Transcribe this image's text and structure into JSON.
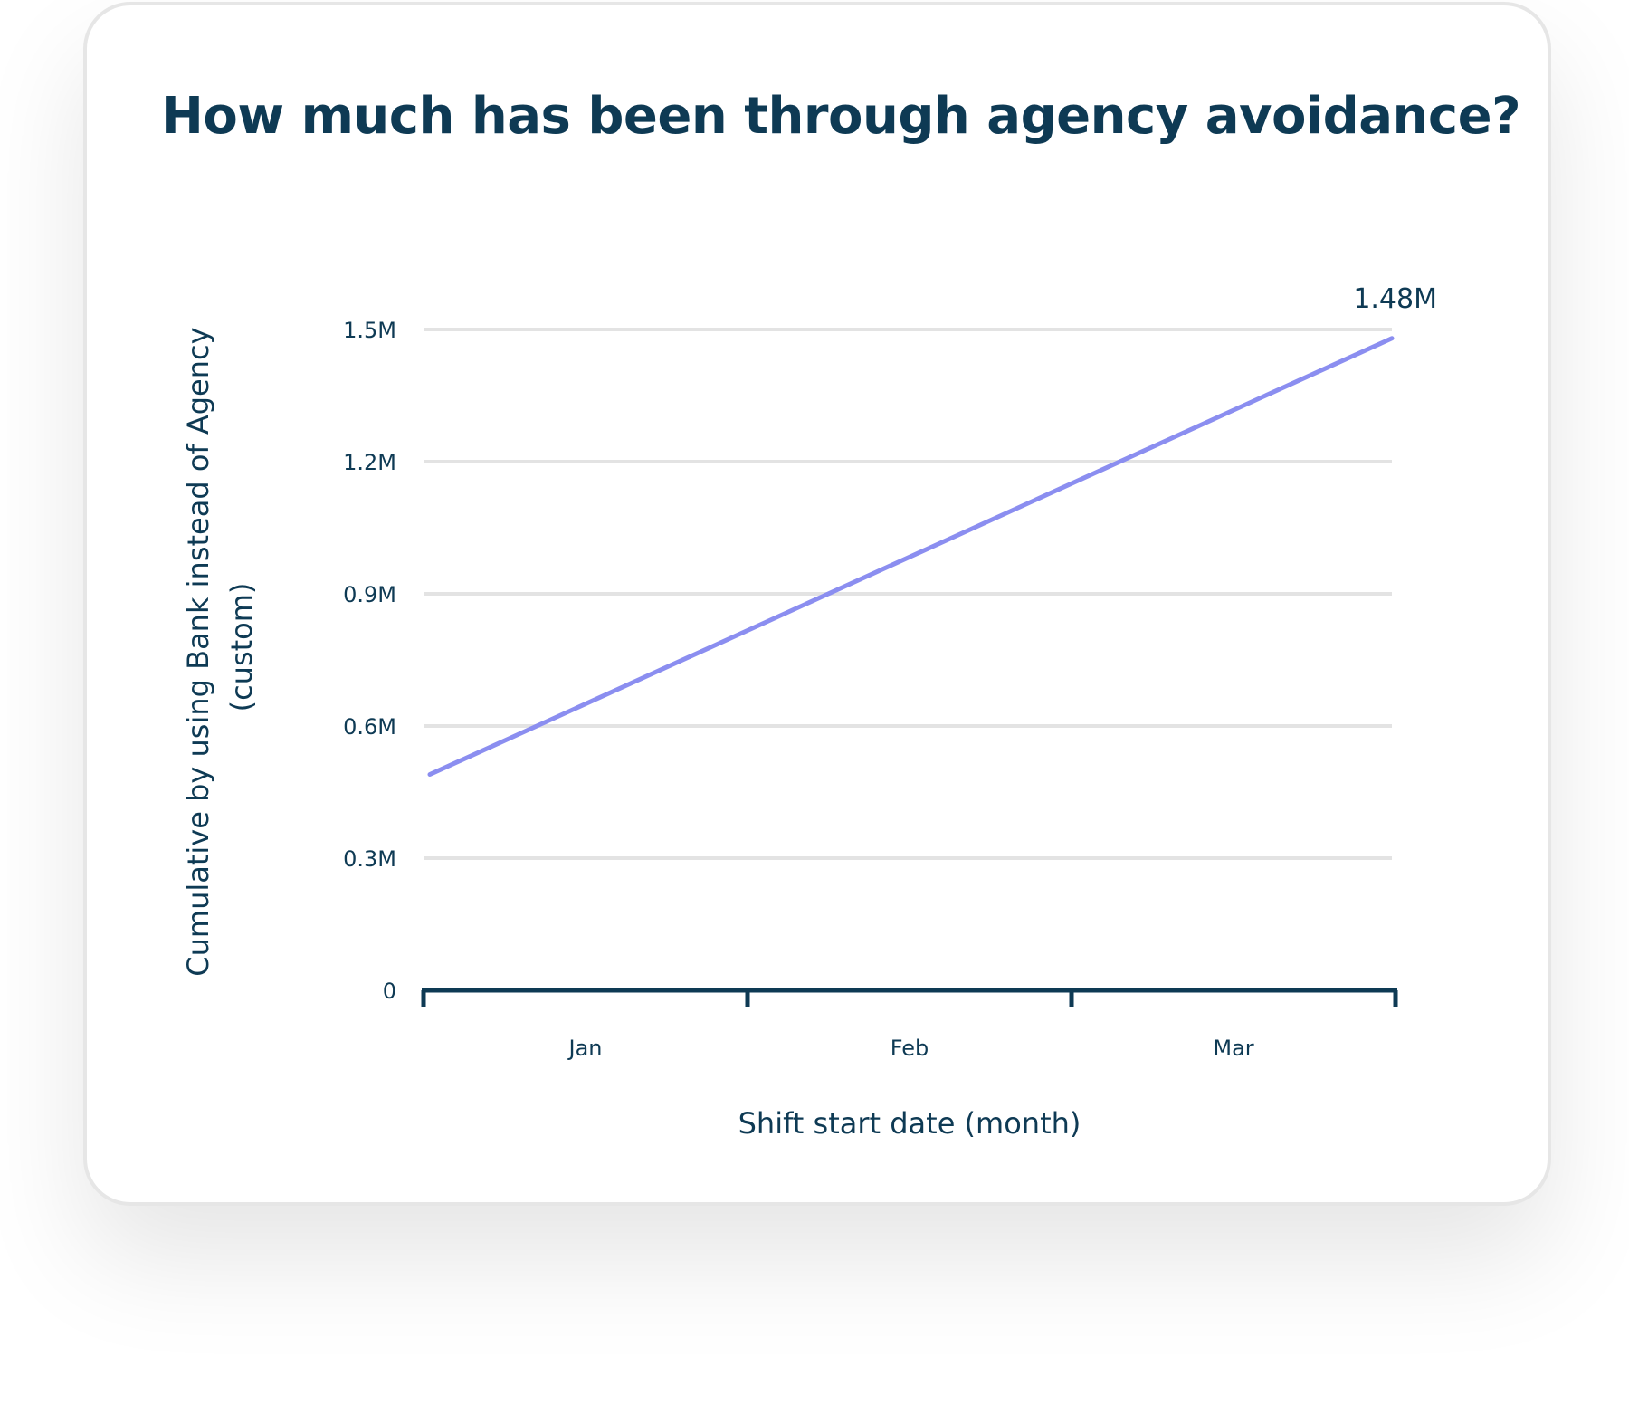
{
  "title": "How much has been through agency avoidance?",
  "colors": {
    "line": "#8b8ef0",
    "text": "#0e3a54",
    "grid": "#e3e3e3",
    "axis": "#0e3a54"
  },
  "chart_data": {
    "type": "line",
    "title": "How much has been through agency avoidance?",
    "xlabel": "Shift start date (month)",
    "ylabel_lines": [
      "Cumulative by using Bank instead of Agency",
      "(custom)"
    ],
    "categories": [
      "Jan",
      "Feb",
      "Mar"
    ],
    "ylim": [
      0,
      1500000
    ],
    "y_ticks": [
      0,
      300000,
      600000,
      900000,
      1200000,
      1500000
    ],
    "y_tick_labels": [
      "0",
      "0.3M",
      "0.6M",
      "0.9M",
      "1.2M",
      "1.5M"
    ],
    "grid": true,
    "series": [
      {
        "x": [
          "Dec 31",
          "Mar 31"
        ],
        "values": [
          490000,
          1480000
        ]
      }
    ],
    "end_label": "1.48M"
  }
}
